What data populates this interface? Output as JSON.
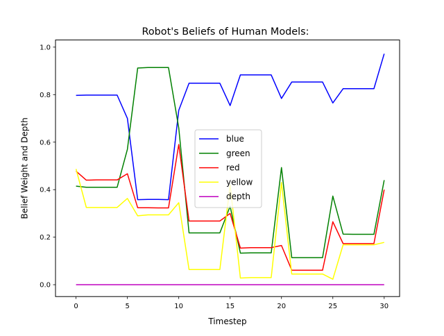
{
  "chart_data": {
    "type": "line",
    "title": "Robot's Beliefs of Human Models:",
    "xlabel": "Timestep",
    "ylabel": "Belief Weight and Depth",
    "xlim": [
      -2,
      31.5
    ],
    "ylim": [
      -0.05,
      1.03
    ],
    "xticks": [
      0,
      5,
      10,
      15,
      20,
      25,
      30
    ],
    "xtick_labels": [
      "0",
      "5",
      "10",
      "15",
      "20",
      "25",
      "30"
    ],
    "yticks": [
      0.0,
      0.2,
      0.4,
      0.6,
      0.8,
      1.0
    ],
    "ytick_labels": [
      "0.0",
      "0.2",
      "0.4",
      "0.6",
      "0.8",
      "1.0"
    ],
    "grid": false,
    "legend_position": "center",
    "x": [
      0,
      1,
      2,
      3,
      4,
      5,
      6,
      7,
      8,
      9,
      10,
      11,
      12,
      13,
      14,
      15,
      16,
      17,
      18,
      19,
      20,
      21,
      22,
      23,
      24,
      25,
      26,
      27,
      28,
      29,
      30
    ],
    "series": [
      {
        "name": "blue",
        "color": "#0000ff",
        "values": [
          0.797,
          0.798,
          0.798,
          0.798,
          0.798,
          0.7,
          0.358,
          0.359,
          0.359,
          0.358,
          0.734,
          0.848,
          0.848,
          0.848,
          0.848,
          0.754,
          0.883,
          0.883,
          0.883,
          0.883,
          0.784,
          0.853,
          0.853,
          0.853,
          0.853,
          0.765,
          0.825,
          0.825,
          0.825,
          0.825,
          0.972
        ]
      },
      {
        "name": "green",
        "color": "#008000",
        "values": [
          0.415,
          0.41,
          0.41,
          0.41,
          0.41,
          0.57,
          0.912,
          0.914,
          0.914,
          0.914,
          0.66,
          0.218,
          0.218,
          0.218,
          0.218,
          0.33,
          0.133,
          0.134,
          0.134,
          0.134,
          0.493,
          0.114,
          0.114,
          0.114,
          0.114,
          0.373,
          0.213,
          0.212,
          0.212,
          0.212,
          0.44
        ]
      },
      {
        "name": "red",
        "color": "#ff0000",
        "values": [
          0.478,
          0.44,
          0.441,
          0.441,
          0.441,
          0.467,
          0.324,
          0.324,
          0.323,
          0.323,
          0.59,
          0.268,
          0.268,
          0.268,
          0.268,
          0.3,
          0.154,
          0.156,
          0.156,
          0.156,
          0.165,
          0.061,
          0.061,
          0.061,
          0.061,
          0.265,
          0.173,
          0.173,
          0.173,
          0.173,
          0.4
        ]
      },
      {
        "name": "yellow",
        "color": "#ffff00",
        "values": [
          0.487,
          0.325,
          0.325,
          0.325,
          0.325,
          0.363,
          0.29,
          0.294,
          0.294,
          0.294,
          0.345,
          0.064,
          0.064,
          0.064,
          0.064,
          0.42,
          0.028,
          0.03,
          0.03,
          0.03,
          0.43,
          0.045,
          0.045,
          0.045,
          0.045,
          0.023,
          0.168,
          0.168,
          0.168,
          0.168,
          0.178
        ]
      },
      {
        "name": "depth",
        "color": "#bf00bf",
        "values": [
          0,
          0,
          0,
          0,
          0,
          0,
          0,
          0,
          0,
          0,
          0,
          0,
          0,
          0,
          0,
          0,
          0,
          0,
          0,
          0,
          0,
          0,
          0,
          0,
          0,
          0,
          0,
          0,
          0,
          0,
          0
        ]
      }
    ]
  }
}
